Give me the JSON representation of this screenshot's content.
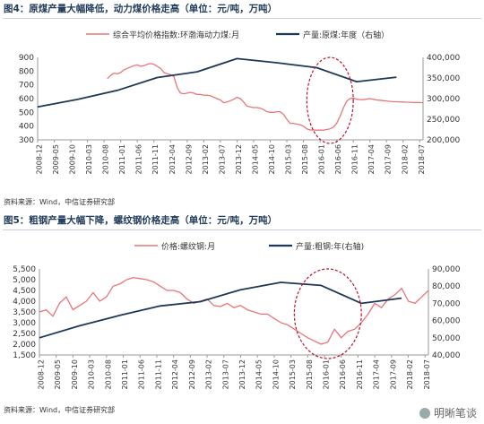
{
  "figures": [
    {
      "title": "图4：原煤产量大幅降低，动力煤价格走高（单位：元/吨，万吨）",
      "source": "资料来源：Wind，中信证券研究部"
    },
    {
      "title": "图5：粗钢产量大幅下降，螺纹钢价格走高（单位：元/吨，万吨）",
      "source": "资料来源：Wind，中信证券研究部"
    }
  ],
  "watermark": "明晰笔谈",
  "chart_data": [
    {
      "type": "line",
      "title": "",
      "legend": {
        "placement": "top",
        "entries": [
          "综合平均价格指数:环渤海动力煤:月",
          "产量:原煤:年度（右轴）"
        ]
      },
      "x_ticks": [
        "2008-12",
        "2009-05",
        "2009-10",
        "2010-03",
        "2010-08",
        "2011-01",
        "2011-06",
        "2011-11",
        "2012-04",
        "2012-09",
        "2013-02",
        "2013-07",
        "2013-12",
        "2014-05",
        "2014-10",
        "2015-03",
        "2015-08",
        "2016-01",
        "2016-06",
        "2016-11",
        "2017-04",
        "2017-09",
        "2018-02",
        "2018-07"
      ],
      "ylim_left": [
        300,
        900
      ],
      "yticks_left": [
        300,
        400,
        500,
        600,
        700,
        800,
        900
      ],
      "ylim_right": [
        200000,
        400000
      ],
      "yticks_right": [
        "200,000",
        "250,000",
        "300,000",
        "350,000",
        "400,000"
      ],
      "grid": false,
      "highlight_ellipse": {
        "x_from": "2015-09",
        "x_to": "2016-11"
      },
      "series": [
        {
          "name": "综合平均价格指数:环渤海动力煤:月",
          "axis": "left",
          "color": "#e8757a",
          "x": [
            "2010-09",
            "2010-10",
            "2010-11",
            "2010-12",
            "2011-01",
            "2011-02",
            "2011-03",
            "2011-04",
            "2011-05",
            "2011-06",
            "2011-07",
            "2011-08",
            "2011-09",
            "2011-10",
            "2011-11",
            "2011-12",
            "2012-01",
            "2012-02",
            "2012-03",
            "2012-04",
            "2012-05",
            "2012-06",
            "2012-07",
            "2012-08",
            "2012-09",
            "2012-10",
            "2012-11",
            "2012-12",
            "2013-01",
            "2013-02",
            "2013-03",
            "2013-04",
            "2013-05",
            "2013-06",
            "2013-07",
            "2013-08",
            "2013-09",
            "2013-10",
            "2013-11",
            "2013-12",
            "2014-01",
            "2014-02",
            "2014-03",
            "2014-04",
            "2014-05",
            "2014-06",
            "2014-07",
            "2014-08",
            "2014-09",
            "2014-10",
            "2014-11",
            "2014-12",
            "2015-01",
            "2015-02",
            "2015-03",
            "2015-04",
            "2015-05",
            "2015-06",
            "2015-07",
            "2015-08",
            "2015-09",
            "2015-10",
            "2015-11",
            "2015-12",
            "2016-01",
            "2016-02",
            "2016-03",
            "2016-04",
            "2016-05",
            "2016-06",
            "2016-07",
            "2016-08",
            "2016-09",
            "2016-10",
            "2016-11",
            "2016-12",
            "2017-01",
            "2017-02",
            "2017-03",
            "2017-04",
            "2017-05",
            "2017-06",
            "2017-07",
            "2017-08",
            "2017-09",
            "2017-10",
            "2017-11",
            "2017-12",
            "2018-01",
            "2018-02",
            "2018-03",
            "2018-04",
            "2018-05",
            "2018-06",
            "2018-07",
            "2018-08"
          ],
          "values": [
            745,
            770,
            785,
            780,
            790,
            810,
            820,
            830,
            840,
            845,
            835,
            840,
            850,
            855,
            850,
            835,
            820,
            790,
            780,
            775,
            760,
            680,
            640,
            635,
            640,
            645,
            640,
            630,
            630,
            625,
            625,
            620,
            610,
            600,
            590,
            570,
            575,
            585,
            595,
            610,
            600,
            575,
            545,
            540,
            535,
            535,
            530,
            520,
            505,
            500,
            500,
            505,
            505,
            485,
            450,
            420,
            420,
            415,
            410,
            400,
            380,
            372,
            372,
            370,
            372,
            370,
            375,
            380,
            392,
            420,
            470,
            530,
            580,
            600,
            605,
            595,
            593,
            592,
            596,
            600,
            595,
            590,
            588,
            585,
            583,
            580,
            578,
            577,
            576,
            575,
            574,
            573,
            572,
            572,
            571,
            570
          ]
        },
        {
          "name": "产量:原煤:年度（右轴）",
          "axis": "right",
          "color": "#1e3857",
          "x": [
            "2008-12",
            "2009-12",
            "2010-12",
            "2011-12",
            "2012-12",
            "2013-12",
            "2014-12",
            "2015-12",
            "2016-12",
            "2017-12"
          ],
          "values": [
            280000,
            298000,
            320000,
            351000,
            365000,
            397000,
            387000,
            375000,
            341000,
            352000
          ]
        }
      ]
    },
    {
      "type": "line",
      "title": "",
      "legend": {
        "placement": "top",
        "entries": [
          "价格:螺纹钢:月",
          "产量:粗钢:年(右轴)"
        ]
      },
      "x_ticks": [
        "2008-12",
        "2009-05",
        "2009-10",
        "2010-03",
        "2010-08",
        "2011-01",
        "2011-06",
        "2011-11",
        "2012-04",
        "2012-09",
        "2013-02",
        "2013-07",
        "2013-12",
        "2014-05",
        "2014-10",
        "2015-03",
        "2015-08",
        "2016-01",
        "2016-06",
        "2016-11",
        "2017-04",
        "2017-09",
        "2018-02",
        "2018-07"
      ],
      "ylim_left": [
        1500,
        5500
      ],
      "yticks_left": [
        "1,500",
        "2,000",
        "2,500",
        "3,000",
        "3,500",
        "4,000",
        "4,500",
        "5,000",
        "5,500"
      ],
      "ylim_right": [
        40000,
        90000
      ],
      "yticks_right": [
        "40,000",
        "50,000",
        "60,000",
        "70,000",
        "80,000",
        "90,000"
      ],
      "grid": false,
      "highlight_ellipse": {
        "x_from": "2015-04",
        "x_to": "2016-12"
      },
      "series": [
        {
          "name": "价格:螺纹钢:月",
          "axis": "left",
          "color": "#e8757a",
          "x": [
            "2008-12",
            "2009-02",
            "2009-04",
            "2009-06",
            "2009-08",
            "2009-10",
            "2009-12",
            "2010-02",
            "2010-04",
            "2010-06",
            "2010-08",
            "2010-10",
            "2010-12",
            "2011-02",
            "2011-04",
            "2011-06",
            "2011-08",
            "2011-10",
            "2011-12",
            "2012-02",
            "2012-04",
            "2012-06",
            "2012-08",
            "2012-10",
            "2012-12",
            "2013-02",
            "2013-04",
            "2013-06",
            "2013-08",
            "2013-10",
            "2013-12",
            "2014-02",
            "2014-04",
            "2014-06",
            "2014-08",
            "2014-10",
            "2014-12",
            "2015-02",
            "2015-04",
            "2015-06",
            "2015-08",
            "2015-10",
            "2015-12",
            "2016-02",
            "2016-04",
            "2016-06",
            "2016-08",
            "2016-10",
            "2016-12",
            "2017-02",
            "2017-04",
            "2017-06",
            "2017-08",
            "2017-10",
            "2017-12",
            "2018-02",
            "2018-04",
            "2018-06",
            "2018-08"
          ],
          "values": [
            3500,
            3600,
            3300,
            3900,
            4200,
            3600,
            3800,
            4000,
            4400,
            4000,
            4200,
            4700,
            4800,
            5000,
            5100,
            5050,
            5000,
            4900,
            4700,
            4500,
            4500,
            4400,
            4100,
            3900,
            4000,
            4100,
            3800,
            3750,
            3900,
            3700,
            3800,
            3600,
            3500,
            3400,
            3400,
            3200,
            3000,
            2900,
            2700,
            2500,
            2300,
            2150,
            2000,
            2100,
            2700,
            2300,
            2600,
            2700,
            3000,
            3400,
            3900,
            3700,
            4100,
            4300,
            4600,
            4000,
            3900,
            4200,
            4500
          ]
        },
        {
          "name": "产量:粗钢:年(右轴)",
          "axis": "right",
          "color": "#1e3857",
          "x": [
            "2008-12",
            "2009-12",
            "2010-12",
            "2011-12",
            "2012-12",
            "2013-12",
            "2014-12",
            "2015-12",
            "2016-12",
            "2017-12"
          ],
          "values": [
            50000,
            57000,
            63000,
            68500,
            71000,
            77900,
            82200,
            80400,
            70000,
            73000
          ]
        }
      ]
    }
  ]
}
